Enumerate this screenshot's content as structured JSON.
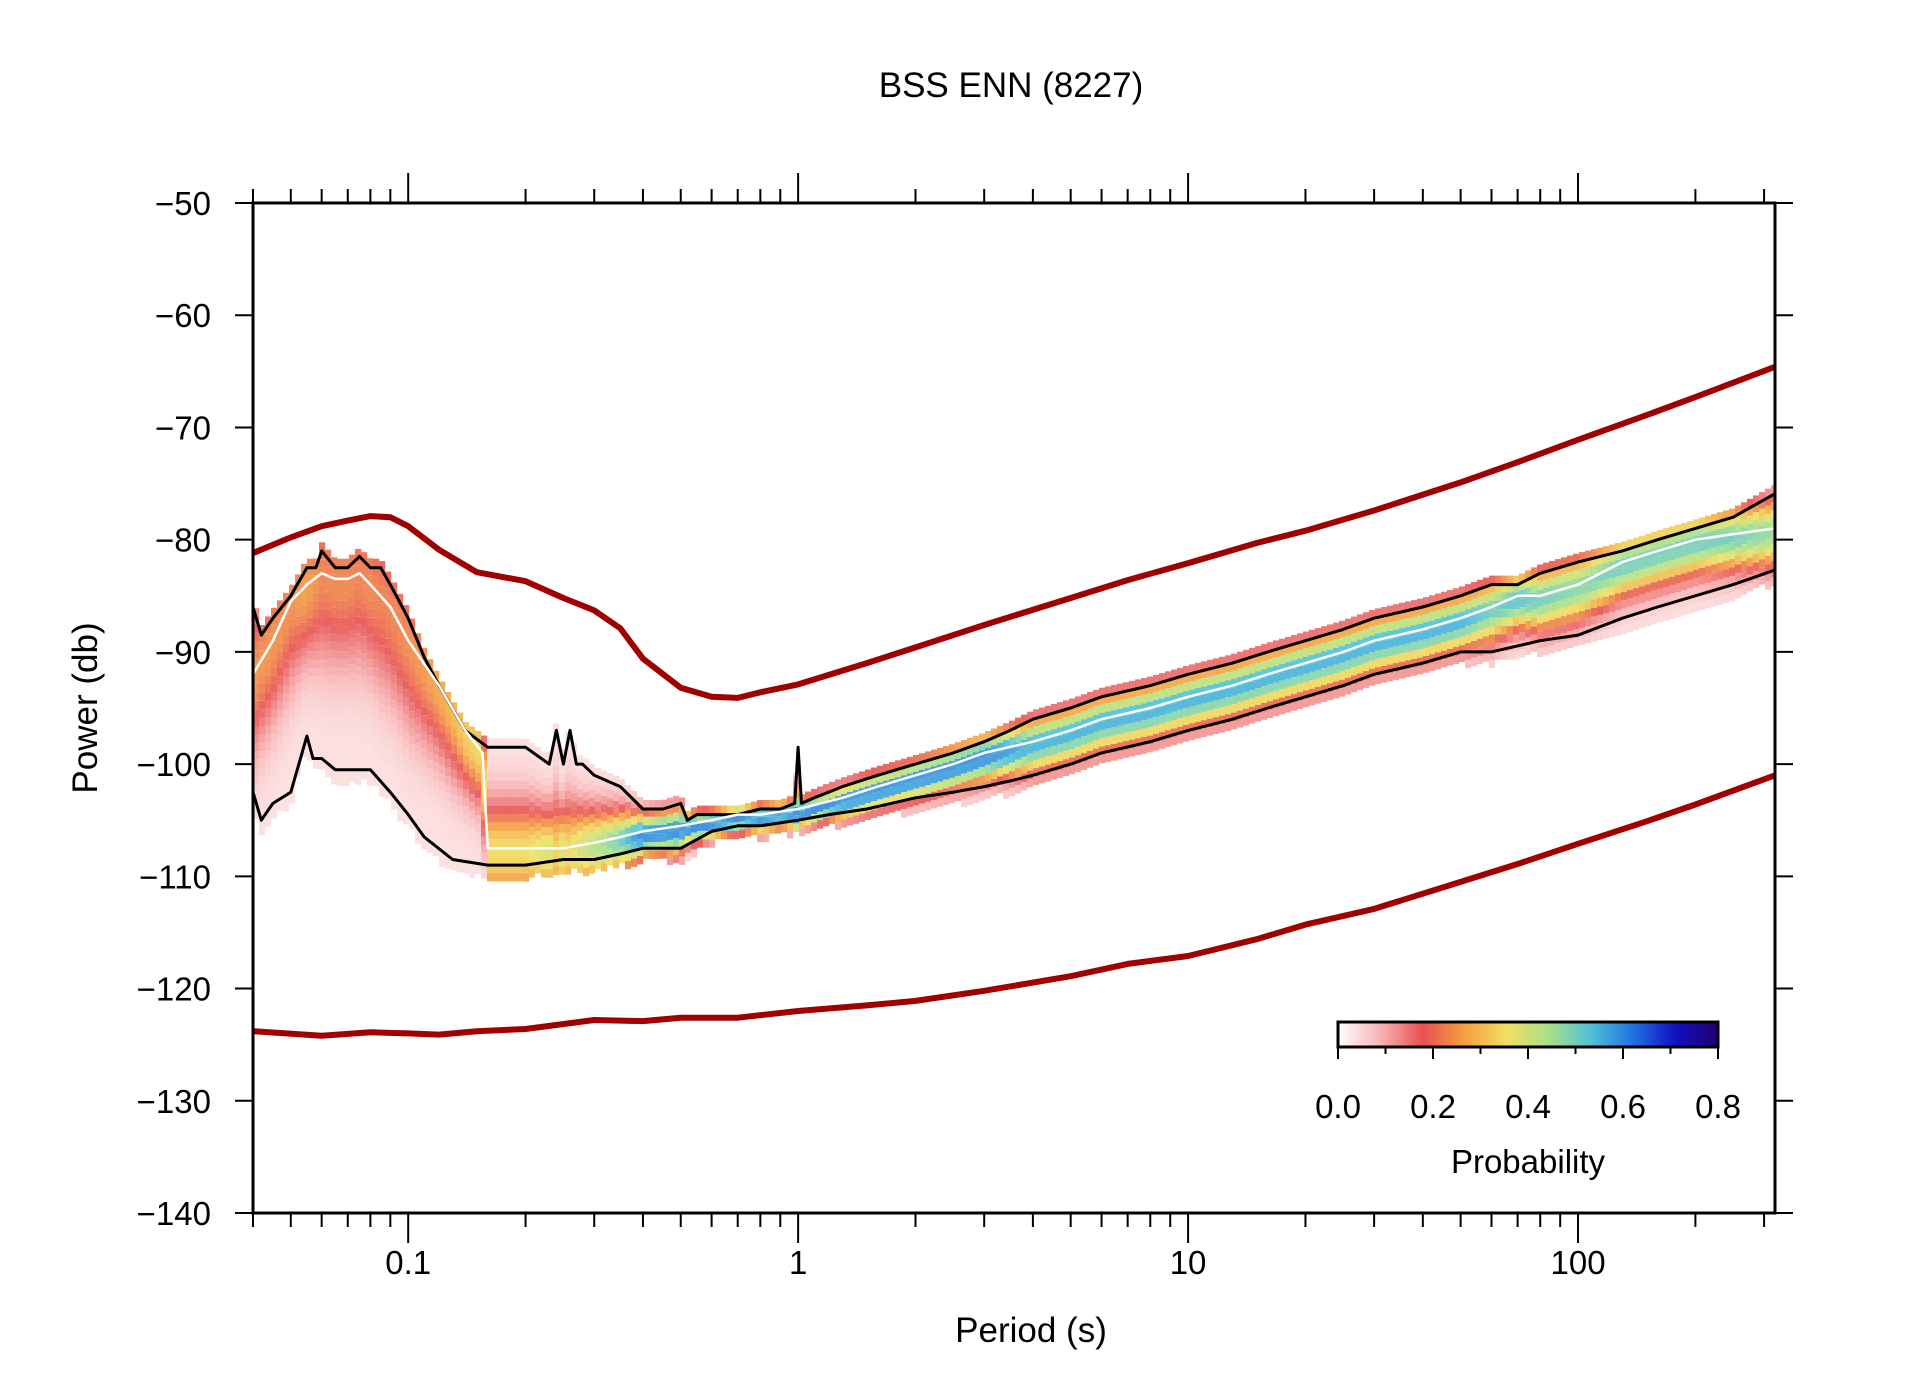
{
  "chart_data": {
    "type": "line",
    "title": "BSS ENN (8227)",
    "xlabel": "Period (s)",
    "ylabel": "Power (db)",
    "x_scale": "log",
    "xlim": [
      0.04,
      320
    ],
    "ylim": [
      -140,
      -50
    ],
    "x_ticks": [
      {
        "value": 0.1,
        "label": "0.1"
      },
      {
        "value": 1,
        "label": "1"
      },
      {
        "value": 10,
        "label": "10"
      },
      {
        "value": 100,
        "label": "100"
      }
    ],
    "y_ticks": [
      {
        "value": -50,
        "label": "−50"
      },
      {
        "value": -60,
        "label": "−60"
      },
      {
        "value": -70,
        "label": "−70"
      },
      {
        "value": -80,
        "label": "−80"
      },
      {
        "value": -90,
        "label": "−90"
      },
      {
        "value": -100,
        "label": "−100"
      },
      {
        "value": -110,
        "label": "−110"
      },
      {
        "value": -120,
        "label": "−120"
      },
      {
        "value": -130,
        "label": "−130"
      },
      {
        "value": -140,
        "label": "−140"
      }
    ],
    "grid": false,
    "series": [
      {
        "role": "noise_model_high",
        "color": "#a00000",
        "x": [
          0.04,
          0.05,
          0.06,
          0.07,
          0.08,
          0.09,
          0.1,
          0.12,
          0.15,
          0.2,
          0.25,
          0.3,
          0.35,
          0.4,
          0.5,
          0.6,
          0.7,
          0.8,
          1,
          1.5,
          2,
          3,
          5,
          7,
          10,
          15,
          20,
          30,
          50,
          70,
          100,
          150,
          200,
          320
        ],
        "y": [
          -81.2,
          -79.8,
          -78.8,
          -78.3,
          -77.9,
          -78.0,
          -78.8,
          -80.9,
          -82.9,
          -83.7,
          -85.2,
          -86.3,
          -87.9,
          -90.6,
          -93.2,
          -94.0,
          -94.1,
          -93.6,
          -92.9,
          -91.0,
          -89.6,
          -87.6,
          -85.2,
          -83.6,
          -82.1,
          -80.3,
          -79.2,
          -77.4,
          -74.9,
          -73.1,
          -71.1,
          -68.9,
          -67.3,
          -64.6
        ]
      },
      {
        "role": "noise_model_low",
        "color": "#a00000",
        "x": [
          0.04,
          0.06,
          0.08,
          0.1,
          0.12,
          0.15,
          0.2,
          0.3,
          0.4,
          0.5,
          0.7,
          1,
          1.5,
          2,
          3,
          5,
          7,
          10,
          15,
          20,
          30,
          50,
          70,
          100,
          150,
          200,
          320
        ],
        "y": [
          -123.8,
          -124.2,
          -123.9,
          -124.0,
          -124.1,
          -123.8,
          -123.6,
          -122.8,
          -122.9,
          -122.6,
          -122.6,
          -122.0,
          -121.5,
          -121.1,
          -120.2,
          -118.9,
          -117.8,
          -117.1,
          -115.6,
          -114.3,
          -112.9,
          -110.5,
          -108.9,
          -107.1,
          -105.1,
          -103.6,
          -101.0
        ]
      },
      {
        "role": "percentile_upper",
        "color": "#000000",
        "x": [
          0.04,
          0.042,
          0.045,
          0.05,
          0.055,
          0.058,
          0.06,
          0.065,
          0.07,
          0.075,
          0.08,
          0.085,
          0.09,
          0.1,
          0.11,
          0.12,
          0.14,
          0.16,
          0.2,
          0.23,
          0.24,
          0.25,
          0.26,
          0.27,
          0.28,
          0.3,
          0.35,
          0.4,
          0.45,
          0.5,
          0.52,
          0.55,
          0.6,
          0.7,
          0.8,
          0.9,
          0.98,
          1.0,
          1.02,
          1.1,
          1.3,
          1.6,
          2,
          2.5,
          3,
          3.5,
          4,
          5,
          6,
          8,
          10,
          13,
          16,
          20,
          25,
          30,
          40,
          50,
          60,
          70,
          80,
          100,
          130,
          160,
          200,
          250,
          320
        ],
        "y": [
          -86,
          -88.5,
          -87,
          -85,
          -82.5,
          -82.5,
          -81,
          -82.5,
          -82.5,
          -81.5,
          -82.5,
          -82.5,
          -84,
          -87,
          -90.5,
          -93,
          -97,
          -98.5,
          -98.5,
          -100,
          -97,
          -100,
          -97,
          -100,
          -100,
          -101,
          -102,
          -104,
          -104,
          -103.5,
          -105,
          -104.5,
          -104.5,
          -104.5,
          -104,
          -104,
          -103.5,
          -98.5,
          -103.5,
          -103,
          -102,
          -101,
          -100,
          -99,
          -98,
          -97,
          -96,
          -95,
          -94,
          -93,
          -92,
          -91,
          -90,
          -89,
          -88,
          -87,
          -86,
          -85,
          -84,
          -84,
          -83,
          -82,
          -81,
          -80,
          -79,
          -78,
          -75.9
        ]
      },
      {
        "role": "percentile_lower",
        "color": "#000000",
        "x": [
          0.04,
          0.042,
          0.045,
          0.05,
          0.055,
          0.057,
          0.06,
          0.065,
          0.07,
          0.08,
          0.09,
          0.1,
          0.11,
          0.13,
          0.16,
          0.2,
          0.25,
          0.3,
          0.35,
          0.4,
          0.5,
          0.6,
          0.7,
          0.8,
          1.0,
          1.2,
          1.5,
          2,
          2.5,
          3,
          3.5,
          4,
          5,
          6,
          8,
          10,
          13,
          16,
          20,
          25,
          30,
          40,
          50,
          60,
          80,
          100,
          130,
          160,
          200,
          250,
          320
        ],
        "y": [
          -102.5,
          -105,
          -103.5,
          -102.5,
          -97.5,
          -99.5,
          -99.5,
          -100.5,
          -100.5,
          -100.5,
          -102.5,
          -104.5,
          -106.5,
          -108.5,
          -109,
          -109,
          -108.5,
          -108.5,
          -108,
          -107.5,
          -107.5,
          -106,
          -105.5,
          -105.5,
          -105,
          -104.5,
          -104,
          -103,
          -102.5,
          -102,
          -101.5,
          -101,
          -100,
          -99,
          -98,
          -97,
          -96,
          -95,
          -94,
          -93,
          -92,
          -91,
          -90,
          -90,
          -89,
          -88.5,
          -87,
          -86,
          -85,
          -84,
          -82.7
        ]
      },
      {
        "role": "mode",
        "color": "#ffffff",
        "x": [
          0.04,
          0.045,
          0.05,
          0.055,
          0.06,
          0.065,
          0.07,
          0.075,
          0.08,
          0.09,
          0.1,
          0.12,
          0.14,
          0.155,
          0.16,
          0.2,
          0.25,
          0.3,
          0.35,
          0.4,
          0.5,
          0.6,
          0.7,
          0.8,
          1,
          1.3,
          1.6,
          2,
          2.5,
          3,
          4,
          5,
          6,
          8,
          10,
          13,
          16,
          20,
          25,
          30,
          40,
          50,
          60,
          70,
          80,
          100,
          130,
          160,
          200,
          250,
          320
        ],
        "y": [
          -92,
          -89,
          -85.5,
          -84,
          -83,
          -83.5,
          -83.5,
          -83,
          -84,
          -86,
          -89,
          -93,
          -97,
          -99,
          -107.5,
          -107.5,
          -107.5,
          -107,
          -106.5,
          -106,
          -105.5,
          -105,
          -104.5,
          -104.5,
          -104,
          -103,
          -102,
          -101,
          -100,
          -99,
          -98,
          -97,
          -96,
          -95,
          -94,
          -93,
          -92,
          -91,
          -90,
          -89,
          -88,
          -87,
          -86,
          -85,
          -85,
          -84,
          -82,
          -81,
          -80,
          -79.5,
          -79
        ]
      }
    ],
    "colorbar": {
      "label": "Probability",
      "ticks": [
        "0.0",
        "0.2",
        "0.4",
        "0.6",
        "0.8"
      ],
      "range": [
        0,
        0.8
      ],
      "colors": [
        "#ffffff",
        "#f8b4b4",
        "#e85050",
        "#f4a040",
        "#f0e060",
        "#a8e088",
        "#50c0d8",
        "#2070e0",
        "#1010c0",
        "#200070"
      ]
    }
  }
}
